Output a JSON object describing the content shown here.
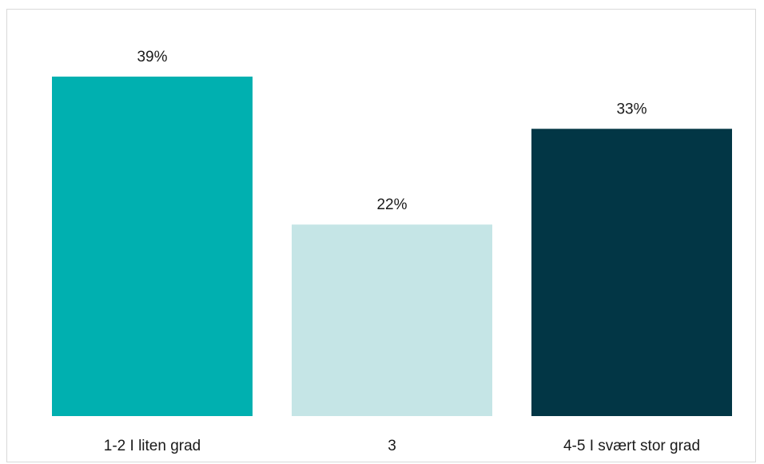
{
  "chart_data": {
    "type": "bar",
    "categories": [
      "1-2 I liten grad",
      "3",
      "4-5 I svært stor grad"
    ],
    "values": [
      39,
      22,
      33
    ],
    "value_labels": [
      "39%",
      "22%",
      "33%"
    ],
    "unit": "%",
    "colors": [
      "#00b0b0",
      "#c5e5e6",
      "#023645"
    ],
    "ylim": [
      0,
      40
    ],
    "grid": false,
    "legend": "none",
    "title": "",
    "xlabel": "",
    "ylabel": ""
  }
}
